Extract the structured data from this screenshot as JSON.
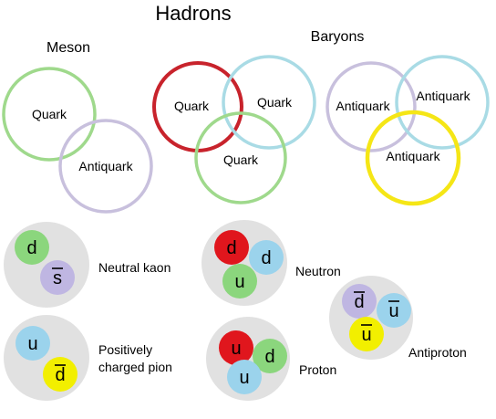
{
  "title": "Hadrons",
  "headings": {
    "meson": "Meson",
    "baryons": "Baryons"
  },
  "colors": {
    "green": "#9fd98c",
    "blue": "#a9dbe5",
    "lilac": "#c8c0dd",
    "red": "#c8232c",
    "yellow": "#f5e616",
    "gray": "#e1e1e1",
    "quark_green": "#8bd67d",
    "quark_blue": "#9bd3ec",
    "quark_lilac": "#bfb6e2",
    "quark_red": "#e0161d",
    "quark_yellow": "#f2ef00"
  },
  "rings": {
    "meson": [
      {
        "label": "Quark",
        "color": "green"
      },
      {
        "label": "Antiquark",
        "color": "lilac"
      }
    ],
    "baryon": [
      {
        "label": "Quark",
        "color": "red"
      },
      {
        "label": "Quark",
        "color": "blue"
      },
      {
        "label": "Quark",
        "color": "green"
      }
    ],
    "antibaryon": [
      {
        "label": "Antiquark",
        "color": "lilac"
      },
      {
        "label": "Antiquark",
        "color": "blue"
      },
      {
        "label": "Antiquark",
        "color": "yellow"
      }
    ]
  },
  "particles": {
    "neutral_kaon": {
      "label": "Neutral kaon",
      "quarks": [
        {
          "symbol": "d",
          "color": "quark_green",
          "anti": false
        },
        {
          "symbol": "s",
          "color": "quark_lilac",
          "anti": true
        }
      ]
    },
    "positive_pion": {
      "label_lines": [
        "Positively",
        "charged pion"
      ],
      "quarks": [
        {
          "symbol": "u",
          "color": "quark_blue",
          "anti": false
        },
        {
          "symbol": "d",
          "color": "quark_yellow",
          "anti": true
        }
      ]
    },
    "neutron": {
      "label": "Neutron",
      "quarks": [
        {
          "symbol": "d",
          "color": "quark_red",
          "anti": false
        },
        {
          "symbol": "d",
          "color": "quark_blue",
          "anti": false
        },
        {
          "symbol": "u",
          "color": "quark_green",
          "anti": false
        }
      ]
    },
    "proton": {
      "label": "Proton",
      "quarks": [
        {
          "symbol": "u",
          "color": "quark_red",
          "anti": false
        },
        {
          "symbol": "d",
          "color": "quark_green",
          "anti": false
        },
        {
          "symbol": "u",
          "color": "quark_blue",
          "anti": false
        }
      ]
    },
    "antiproton": {
      "label": "Antiproton",
      "quarks": [
        {
          "symbol": "d",
          "color": "quark_lilac",
          "anti": true
        },
        {
          "symbol": "u",
          "color": "quark_blue",
          "anti": true
        },
        {
          "symbol": "u",
          "color": "quark_yellow",
          "anti": true
        }
      ]
    }
  }
}
